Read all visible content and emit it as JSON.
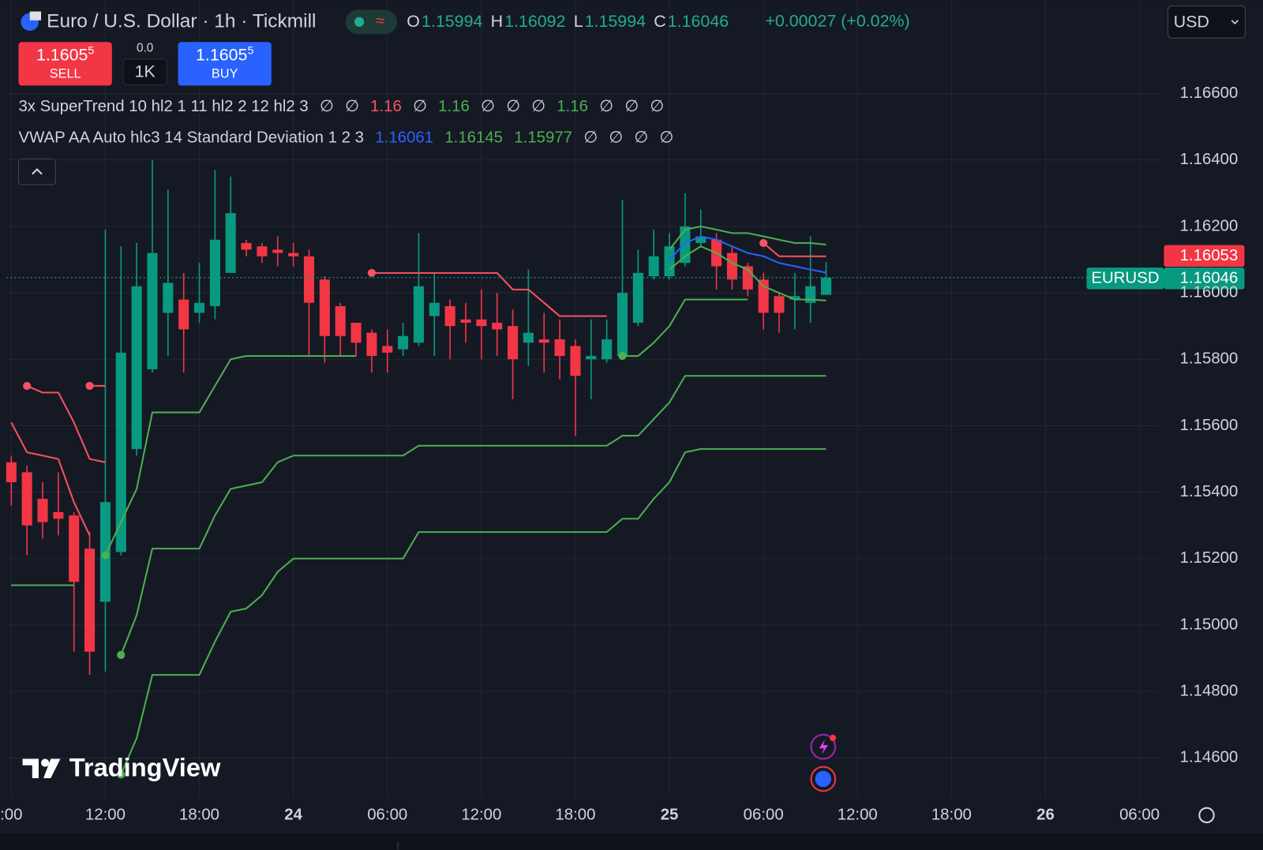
{
  "chart_data": {
    "type": "candlestick",
    "title": "Euro / U.S. Dollar · 1h · Tickmill",
    "ohlc": [
      {
        "label": "O",
        "value": 1.15994
      },
      {
        "label": "H",
        "value": 1.16092
      },
      {
        "label": "L",
        "value": 1.15994
      },
      {
        "label": "C",
        "value": 1.16046
      }
    ],
    "change": "+0.00027 (+0.02%)",
    "sell": {
      "price": "1.1605",
      "pip": "5",
      "label": "SELL"
    },
    "spread": "0.0",
    "quantity": "1K",
    "buy": {
      "price": "1.1605",
      "pip": "5",
      "label": "BUY"
    },
    "currency": "USD",
    "supertrend_legend": {
      "title": "3x SuperTrend 10 hl2 1 11 hl2 2 12 hl2 3",
      "values": [
        {
          "text": "∅",
          "color": "#d1d4dc"
        },
        {
          "text": "∅",
          "color": "#d1d4dc"
        },
        {
          "text": "1.16",
          "color": "#f7525f"
        },
        {
          "text": "∅",
          "color": "#d1d4dc"
        },
        {
          "text": "1.16",
          "color": "#4caf50"
        },
        {
          "text": "∅",
          "color": "#d1d4dc"
        },
        {
          "text": "∅",
          "color": "#d1d4dc"
        },
        {
          "text": "∅",
          "color": "#d1d4dc"
        },
        {
          "text": "1.16",
          "color": "#4caf50"
        },
        {
          "text": "∅",
          "color": "#d1d4dc"
        },
        {
          "text": "∅",
          "color": "#d1d4dc"
        },
        {
          "text": "∅",
          "color": "#d1d4dc"
        }
      ]
    },
    "vwap_legend": {
      "title": "VWAP AA Auto hlc3 14 Standard Deviation 1 2 3",
      "values": [
        {
          "text": "1.16061",
          "color": "#2962ff"
        },
        {
          "text": "1.16145",
          "color": "#4caf50"
        },
        {
          "text": "1.15977",
          "color": "#4caf50"
        },
        {
          "text": "∅",
          "color": "#d1d4dc"
        },
        {
          "text": "∅",
          "color": "#d1d4dc"
        },
        {
          "text": "∅",
          "color": "#d1d4dc"
        },
        {
          "text": "∅",
          "color": "#d1d4dc"
        }
      ]
    },
    "price_labels": [
      {
        "text": "1.16053",
        "color": "#f23645"
      },
      {
        "symbol": "EURUSD",
        "text": "1.16046",
        "color": "#089981"
      }
    ],
    "watermark": "TradingView",
    "up_color": "#089981",
    "down_color": "#f23645",
    "grid": true,
    "xlim": [
      -0.31,
      73.3
    ],
    "xticks": [
      {
        "value": 0,
        "label": ":00"
      },
      {
        "value": 6,
        "label": "12:00"
      },
      {
        "value": 12,
        "label": "18:00"
      },
      {
        "value": 18,
        "label": "24"
      },
      {
        "value": 24,
        "label": "06:00"
      },
      {
        "value": 30,
        "label": "12:00"
      },
      {
        "value": 36,
        "label": "18:00"
      },
      {
        "value": 42,
        "label": "25"
      },
      {
        "value": 48,
        "label": "06:00"
      },
      {
        "value": 54,
        "label": "12:00"
      },
      {
        "value": 60,
        "label": "18:00"
      },
      {
        "value": 66,
        "label": "26"
      },
      {
        "value": 72,
        "label": "06:00"
      }
    ],
    "ylim": [
      1.14481,
      1.16881
    ],
    "yticks": [
      {
        "value": 1.146,
        "label": "1.14600"
      },
      {
        "value": 1.148,
        "label": "1.14800"
      },
      {
        "value": 1.15,
        "label": "1.15000"
      },
      {
        "value": 1.152,
        "label": "1.15200"
      },
      {
        "value": 1.154,
        "label": "1.15400"
      },
      {
        "value": 1.156,
        "label": "1.15600"
      },
      {
        "value": 1.158,
        "label": "1.15800"
      },
      {
        "value": 1.16,
        "label": "1.16000"
      },
      {
        "value": 1.162,
        "label": "1.16200"
      },
      {
        "value": 1.164,
        "label": "1.16400"
      },
      {
        "value": 1.166,
        "label": "1.16600"
      }
    ],
    "x": [
      0,
      1,
      2,
      3,
      4,
      5,
      6,
      7,
      8,
      9,
      10,
      11,
      12,
      13,
      14,
      15,
      16,
      17,
      18,
      19,
      20,
      21,
      22,
      23,
      24,
      25,
      26,
      27,
      28,
      29,
      30,
      31,
      32,
      33,
      34,
      35,
      36,
      37,
      38,
      39,
      40,
      41,
      42,
      43,
      44,
      45,
      46,
      47,
      48,
      49,
      50,
      51,
      52
    ],
    "open": [
      1.1549,
      1.1546,
      1.1538,
      1.1534,
      1.1533,
      1.1523,
      1.1507,
      1.1522,
      1.1553,
      1.1577,
      1.1594,
      1.1598,
      1.1594,
      1.1596,
      1.1606,
      1.1615,
      1.1614,
      1.1613,
      1.1612,
      1.1611,
      1.1604,
      1.1596,
      1.1591,
      1.1588,
      1.1584,
      1.1583,
      1.1585,
      1.1593,
      1.1596,
      1.1592,
      1.1592,
      1.1591,
      1.159,
      1.1585,
      1.1586,
      1.1586,
      1.1584,
      1.158,
      1.158,
      1.1581,
      1.1591,
      1.1605,
      1.1605,
      1.1609,
      1.1615,
      1.1616,
      1.1612,
      1.1608,
      1.1604,
      1.1599,
      1.1598,
      1.1597,
      1.15994
    ],
    "high": [
      1.1551,
      1.1548,
      1.1543,
      1.1546,
      1.1534,
      1.1528,
      1.1619,
      1.1614,
      1.1615,
      1.164,
      1.1631,
      1.1606,
      1.1609,
      1.1637,
      1.1635,
      1.1616,
      1.1615,
      1.1617,
      1.1615,
      1.1613,
      1.1605,
      1.1597,
      1.1591,
      1.1589,
      1.1589,
      1.1591,
      1.1618,
      1.1606,
      1.1598,
      1.1597,
      1.1601,
      1.16,
      1.1595,
      1.1607,
      1.1594,
      1.1592,
      1.1586,
      1.1592,
      1.1592,
      1.1628,
      1.1613,
      1.1619,
      1.1618,
      1.163,
      1.1625,
      1.1618,
      1.1614,
      1.1609,
      1.1606,
      1.16,
      1.1606,
      1.1617,
      1.16092
    ],
    "low": [
      1.1536,
      1.1521,
      1.1526,
      1.1527,
      1.1492,
      1.1485,
      1.1486,
      1.1521,
      1.1551,
      1.1576,
      1.1581,
      1.1576,
      1.1591,
      1.1592,
      1.1606,
      1.1611,
      1.1609,
      1.1608,
      1.1608,
      1.1581,
      1.1579,
      1.1581,
      1.1581,
      1.1576,
      1.1576,
      1.1581,
      1.1584,
      1.1581,
      1.158,
      1.1585,
      1.158,
      1.1581,
      1.1568,
      1.1578,
      1.1576,
      1.1574,
      1.1557,
      1.1568,
      1.1579,
      1.158,
      1.159,
      1.1604,
      1.1604,
      1.1608,
      1.1614,
      1.1601,
      1.1601,
      1.1599,
      1.1589,
      1.1588,
      1.1589,
      1.1591,
      1.15994
    ],
    "close": [
      1.1543,
      1.153,
      1.1531,
      1.1532,
      1.1513,
      1.1492,
      1.1537,
      1.1582,
      1.1602,
      1.1612,
      1.1603,
      1.1589,
      1.1597,
      1.1616,
      1.1624,
      1.1613,
      1.1611,
      1.1612,
      1.1611,
      1.1597,
      1.1587,
      1.1587,
      1.1585,
      1.1581,
      1.1582,
      1.1587,
      1.1602,
      1.1597,
      1.159,
      1.1591,
      1.159,
      1.1589,
      1.158,
      1.1588,
      1.1585,
      1.1581,
      1.1575,
      1.1581,
      1.1586,
      1.16,
      1.1606,
      1.1611,
      1.1614,
      1.162,
      1.1617,
      1.1608,
      1.1604,
      1.1601,
      1.1594,
      1.1594,
      1.1599,
      1.1602,
      1.16046
    ],
    "series": [
      {
        "color": "#f7525f",
        "start_markers": true,
        "values": [
          1.1561,
          1.1552,
          1.1551,
          1.155,
          1.1537,
          1.1527,
          null,
          null,
          null,
          null,
          null,
          null,
          null,
          null,
          null,
          null,
          null,
          null,
          null,
          null,
          null,
          null,
          null,
          1.1606,
          1.1606,
          1.1606,
          1.1606,
          1.1606,
          1.1606,
          1.1606,
          1.1606,
          1.1606,
          1.1601,
          1.1601,
          1.1597,
          1.1593,
          1.1593,
          1.1593,
          1.1593,
          null,
          null,
          null,
          null,
          null,
          null,
          null,
          null,
          null,
          1.1615,
          1.1611,
          1.1611,
          1.1611,
          1.1611
        ]
      },
      {
        "color": "#4caf50",
        "start_markers": true,
        "values": [
          null,
          null,
          null,
          null,
          null,
          null,
          1.1521,
          1.1531,
          1.1541,
          1.1564,
          1.1564,
          1.1564,
          1.1564,
          1.1572,
          1.158,
          1.1581,
          1.1581,
          1.1581,
          1.1581,
          1.1581,
          1.1581,
          1.1581,
          1.1581,
          null,
          null,
          null,
          null,
          null,
          null,
          null,
          null,
          null,
          null,
          null,
          null,
          null,
          null,
          null,
          null,
          1.1581,
          1.1581,
          1.1585,
          1.159,
          1.1598,
          1.1598,
          1.1598,
          1.1598,
          1.1598,
          null,
          null,
          null,
          null,
          null
        ]
      },
      {
        "color": "#f7525f",
        "start_markers": true,
        "values": [
          null,
          null,
          null,
          null,
          null,
          1.1572,
          1.1572,
          null,
          null,
          null,
          null,
          null,
          null,
          null,
          null,
          null,
          null,
          null,
          null,
          null,
          null,
          null,
          null,
          null,
          null,
          null,
          null,
          null,
          null,
          null,
          null,
          null,
          null,
          null,
          null,
          null,
          null,
          null,
          null,
          null,
          null,
          null,
          null,
          null,
          null,
          null,
          null,
          null,
          null,
          null,
          null,
          null,
          null
        ]
      },
      {
        "color": "#4caf50",
        "start_markers": true,
        "values": [
          1.1512,
          1.1512,
          1.1512,
          1.1512,
          1.1512,
          null,
          null,
          1.1491,
          1.1503,
          1.1523,
          1.1523,
          1.1523,
          1.1523,
          1.1533,
          1.1541,
          1.1542,
          1.1543,
          1.1549,
          1.1551,
          1.1551,
          1.1551,
          1.1551,
          1.1551,
          1.1551,
          1.1551,
          1.1551,
          1.1554,
          1.1554,
          1.1554,
          1.1554,
          1.1554,
          1.1554,
          1.1554,
          1.1554,
          1.1554,
          1.1554,
          1.1554,
          1.1554,
          1.1554,
          1.1557,
          1.1557,
          1.1562,
          1.1567,
          1.1575,
          1.1575,
          1.1575,
          1.1575,
          1.1575,
          1.1575,
          1.1575,
          1.1575,
          1.1575,
          1.1575
        ]
      },
      {
        "color": "#f7525f",
        "start_markers": true,
        "values": [
          null,
          1.1572,
          1.157,
          1.157,
          1.1561,
          1.155,
          1.1549,
          null,
          null,
          null,
          null,
          null,
          null,
          null,
          null,
          null,
          null,
          null,
          null,
          null,
          null,
          null,
          null,
          null,
          null,
          null,
          null,
          null,
          null,
          null,
          null,
          null,
          null,
          null,
          null,
          null,
          null,
          null,
          null,
          null,
          null,
          null,
          null,
          null,
          null,
          null,
          null,
          null,
          null,
          null,
          null,
          null,
          null
        ]
      },
      {
        "color": "#4caf50",
        "start_markers": true,
        "values": [
          1.1532,
          null,
          null,
          null,
          null,
          null,
          null,
          1.1455,
          1.1466,
          1.1485,
          1.1485,
          1.1485,
          1.1485,
          1.1495,
          1.1504,
          1.1505,
          1.1509,
          1.1516,
          1.152,
          1.152,
          1.152,
          1.152,
          1.152,
          1.152,
          1.152,
          1.152,
          1.1528,
          1.1528,
          1.1528,
          1.1528,
          1.1528,
          1.1528,
          1.1528,
          1.1528,
          1.1528,
          1.1528,
          1.1528,
          1.1528,
          1.1528,
          1.1532,
          1.1532,
          1.1538,
          1.1543,
          1.1552,
          1.1553,
          1.1553,
          1.1553,
          1.1553,
          1.1553,
          1.1553,
          1.1553,
          1.1553,
          1.1553
        ]
      },
      {
        "color": "#2962ff",
        "start_markers": false,
        "values": [
          null,
          null,
          null,
          null,
          null,
          null,
          null,
          null,
          null,
          null,
          null,
          null,
          null,
          null,
          null,
          null,
          null,
          null,
          null,
          null,
          null,
          null,
          null,
          null,
          null,
          null,
          null,
          null,
          null,
          null,
          null,
          null,
          null,
          null,
          null,
          null,
          null,
          null,
          null,
          null,
          null,
          null,
          1.161,
          1.1615,
          1.1617,
          1.1616,
          1.1614,
          1.1612,
          1.1611,
          1.1609,
          1.1608,
          1.1607,
          1.16061
        ]
      },
      {
        "color": "#4caf50",
        "start_markers": false,
        "values": [
          null,
          null,
          null,
          null,
          null,
          null,
          null,
          null,
          null,
          null,
          null,
          null,
          null,
          null,
          null,
          null,
          null,
          null,
          null,
          null,
          null,
          null,
          null,
          null,
          null,
          null,
          null,
          null,
          null,
          null,
          null,
          null,
          null,
          null,
          null,
          null,
          null,
          null,
          null,
          null,
          null,
          null,
          1.1613,
          1.1619,
          1.162,
          1.1619,
          1.1618,
          1.1618,
          1.1617,
          1.1616,
          1.1615,
          1.1615,
          1.16145
        ]
      },
      {
        "color": "#4caf50",
        "start_markers": false,
        "values": [
          null,
          null,
          null,
          null,
          null,
          null,
          null,
          null,
          null,
          null,
          null,
          null,
          null,
          null,
          null,
          null,
          null,
          null,
          null,
          null,
          null,
          null,
          null,
          null,
          null,
          null,
          null,
          null,
          null,
          null,
          null,
          null,
          null,
          null,
          null,
          null,
          null,
          null,
          null,
          null,
          null,
          null,
          1.1607,
          1.1611,
          1.1614,
          1.1612,
          1.1609,
          1.1607,
          1.1602,
          1.16,
          1.1598,
          1.1598,
          1.15977
        ]
      }
    ]
  }
}
